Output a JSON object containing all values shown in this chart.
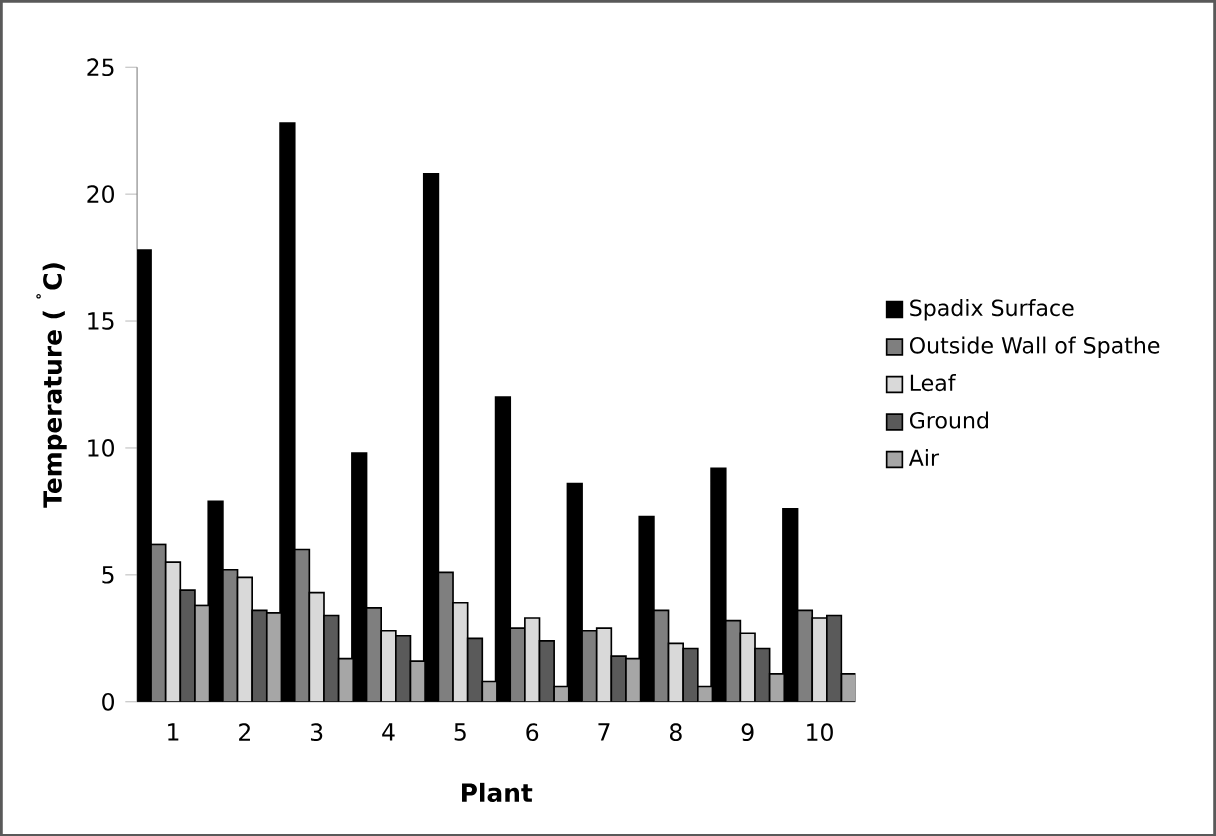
{
  "chart_data": {
    "type": "bar",
    "xlabel": "Plant",
    "ylabel": "Temperature ( $^{˚}$C)",
    "categories": [
      "1",
      "2",
      "3",
      "4",
      "5",
      "6",
      "7",
      "8",
      "9",
      "10"
    ],
    "series": [
      {
        "name": "Spadix Surface",
        "color": "#000000",
        "values": [
          17.8,
          7.9,
          22.8,
          9.8,
          20.8,
          12.0,
          8.6,
          7.3,
          9.2,
          7.6
        ]
      },
      {
        "name": "Outside Wall of Spathe",
        "color": "#7f7f7f",
        "values": [
          6.2,
          5.2,
          6.0,
          3.7,
          5.1,
          2.9,
          2.8,
          3.6,
          3.2,
          3.6
        ]
      },
      {
        "name": "Leaf",
        "color": "#d9d9d9",
        "values": [
          5.5,
          4.9,
          4.3,
          2.8,
          3.9,
          3.3,
          2.9,
          2.3,
          2.7,
          3.3
        ]
      },
      {
        "name": "Ground",
        "color": "#5a5a5a",
        "values": [
          4.4,
          3.6,
          3.4,
          2.6,
          2.5,
          2.4,
          1.8,
          2.1,
          2.1,
          3.4
        ]
      },
      {
        "name": "Air",
        "color": "#a6a6a6",
        "values": [
          3.8,
          3.5,
          1.7,
          1.6,
          0.8,
          0.6,
          1.7,
          0.6,
          1.1,
          1.1
        ]
      }
    ],
    "ylim": [
      0,
      25
    ],
    "yticks": [
      0,
      5,
      10,
      15,
      20,
      25
    ],
    "grid": false,
    "legend": "right"
  }
}
